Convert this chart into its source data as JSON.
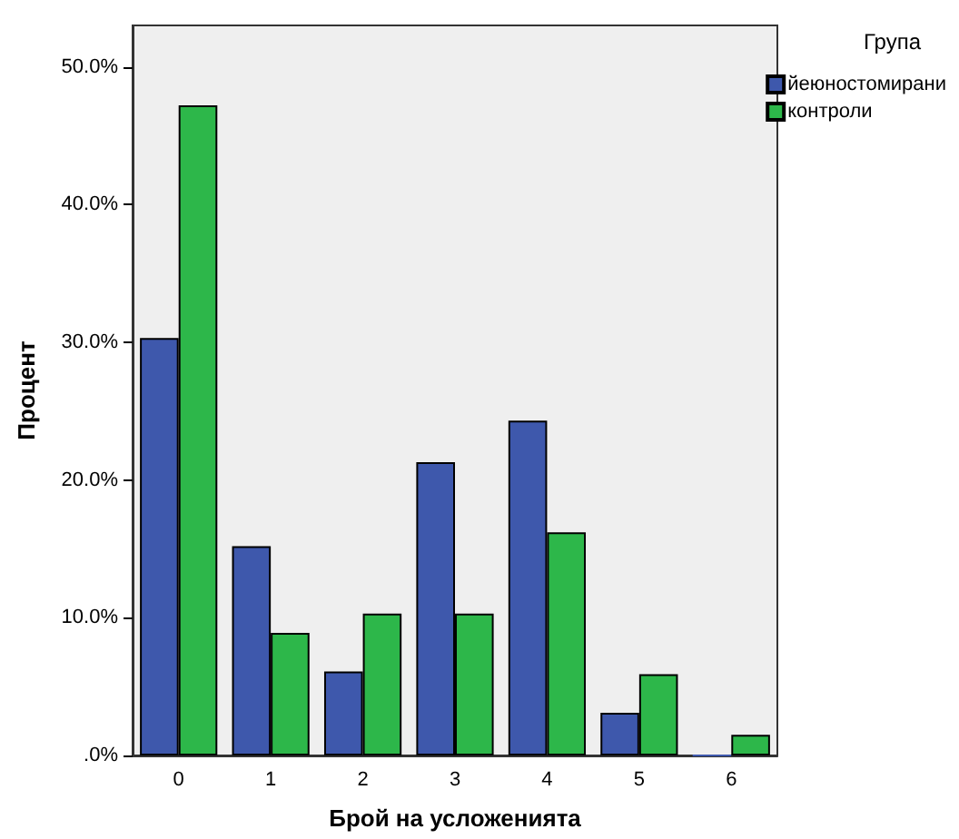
{
  "chart_data": {
    "type": "bar",
    "xlabel": "Брой на усложенията",
    "ylabel": "Процент",
    "legend_title": "Група",
    "categories": [
      "0",
      "1",
      "2",
      "3",
      "4",
      "5",
      "6"
    ],
    "series": [
      {
        "name": "йеюностомирани",
        "color": "#3e58ac",
        "values": [
          30.3,
          15.2,
          6.1,
          21.3,
          24.3,
          3.1,
          0
        ]
      },
      {
        "name": "контроли",
        "color": "#2db74a",
        "values": [
          47.2,
          8.9,
          10.3,
          10.3,
          16.2,
          5.9,
          1.5
        ]
      }
    ],
    "ylim": [
      0,
      53
    ],
    "yticks": [
      {
        "value": 0,
        "label": ".0%"
      },
      {
        "value": 10,
        "label": "10.0%"
      },
      {
        "value": 20,
        "label": "20.0%"
      },
      {
        "value": 30,
        "label": "30.0%"
      },
      {
        "value": 40,
        "label": "40.0%"
      },
      {
        "value": 50,
        "label": "50.0%"
      }
    ],
    "grid": false,
    "legend": "top right"
  }
}
